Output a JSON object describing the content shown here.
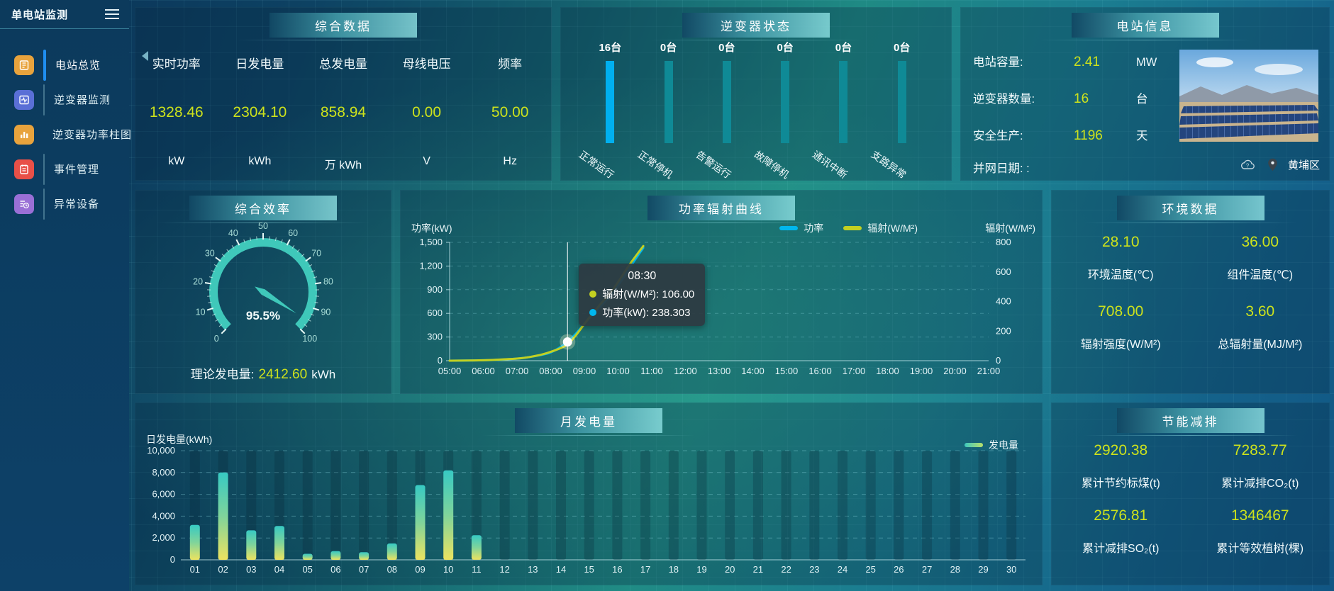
{
  "app": {
    "title": "单电站监测"
  },
  "colors": {
    "accent_yellow": "#cde21c",
    "active_bar_blue": "#00b0f0",
    "idle_bar_teal": "#0f8a96",
    "gauge_teal": "#3fc8ba",
    "nav_active_blue": "#1f8ef0"
  },
  "sidebar": {
    "items": [
      {
        "label": "电站总览",
        "icon": "station-overview",
        "color": "#e8a33d",
        "active": true
      },
      {
        "label": "逆变器监测",
        "icon": "inverter-monitor",
        "color": "#5a6fd6",
        "active": false
      },
      {
        "label": "逆变器功率柱图",
        "icon": "inverter-power-bars",
        "color": "#e8a33d",
        "active": false
      },
      {
        "label": "事件管理",
        "icon": "event-management",
        "color": "#e85048",
        "active": false
      },
      {
        "label": "异常设备",
        "icon": "abnormal-device",
        "color": "#9a6fd6",
        "active": false
      }
    ]
  },
  "panels": {
    "summary": {
      "title": "综合数据",
      "metrics": [
        {
          "label": "实时功率",
          "value": "1328.46",
          "unit": "kW"
        },
        {
          "label": "日发电量",
          "value": "2304.10",
          "unit": "kWh"
        },
        {
          "label": "总发电量",
          "value": "858.94",
          "unit": "万 kWh"
        },
        {
          "label": "母线电压",
          "value": "0.00",
          "unit": "V"
        },
        {
          "label": "频率",
          "value": "50.00",
          "unit": "Hz"
        }
      ]
    },
    "inverter_status": {
      "title": "逆变器状态",
      "bars": [
        {
          "count": "16台",
          "label": "正常运行",
          "highlight": true
        },
        {
          "count": "0台",
          "label": "正常停机",
          "highlight": false
        },
        {
          "count": "0台",
          "label": "告警运行",
          "highlight": false
        },
        {
          "count": "0台",
          "label": "故障停机",
          "highlight": false
        },
        {
          "count": "0台",
          "label": "通讯中断",
          "highlight": false
        },
        {
          "count": "0台",
          "label": "支路异常",
          "highlight": false
        }
      ]
    },
    "station_info": {
      "title": "电站信息",
      "rows": [
        {
          "label": "电站容量:",
          "value": "2.41",
          "unit": "MW"
        },
        {
          "label": "逆变器数量:",
          "value": "16",
          "unit": "台"
        },
        {
          "label": "安全生产:",
          "value": "1196",
          "unit": "天"
        },
        {
          "label": "并网日期: :",
          "value": "",
          "unit": ""
        }
      ],
      "location": "黄埔区"
    },
    "efficiency": {
      "title": "综合效率",
      "footer_label": "理论发电量:",
      "footer_value": "2412.60",
      "footer_unit": "kWh"
    },
    "environment": {
      "title": "环境数据",
      "metrics": [
        {
          "value": "28.10",
          "label": "环境温度(℃)"
        },
        {
          "value": "36.00",
          "label": "组件温度(℃)"
        },
        {
          "value": "708.00",
          "label": "辐射强度(W/M²)"
        },
        {
          "value": "3.60",
          "label": "总辐射量(MJ/M²)"
        }
      ]
    },
    "saving": {
      "title": "节能减排",
      "metrics": [
        {
          "value": "2920.38",
          "label": "累计节约标煤(t)"
        },
        {
          "value": "7283.77",
          "label": "累计减排CO₂(t)"
        },
        {
          "value": "2576.81",
          "label": "累计减排SO₂(t)"
        },
        {
          "value": "1346467",
          "label": "累计等效植树(棵)"
        }
      ]
    }
  },
  "chart_data": [
    {
      "id": "power_radiation",
      "type": "line",
      "title": "功率辐射曲线",
      "ylabel_left": "功率(kW)",
      "ylabel_right": "辐射(W/M²)",
      "ylim_left": [
        0,
        1500
      ],
      "yticks_left": [
        0,
        300,
        600,
        900,
        1200,
        1500
      ],
      "ylim_right": [
        0,
        800
      ],
      "yticks_right": [
        0,
        200,
        400,
        600,
        800
      ],
      "x_range_hours": [
        5,
        21
      ],
      "xticks": [
        "05:00",
        "06:00",
        "07:00",
        "08:00",
        "09:00",
        "10:00",
        "11:00",
        "12:00",
        "13:00",
        "14:00",
        "15:00",
        "16:00",
        "17:00",
        "18:00",
        "19:00",
        "20:00",
        "21:00"
      ],
      "grid": "dashed-horizontal",
      "legend_position": "top-right",
      "legend": [
        {
          "name": "功率",
          "color": "#00b7ee"
        },
        {
          "name": "辐射(W/M²)",
          "color": "#c3d021"
        }
      ],
      "series": [
        {
          "name": "功率",
          "axis": "left",
          "color": "#00b7ee",
          "points": [
            [
              5,
              0
            ],
            [
              5.5,
              2
            ],
            [
              6,
              5
            ],
            [
              6.5,
              12
            ],
            [
              7,
              25
            ],
            [
              7.25,
              38
            ],
            [
              7.5,
              55
            ],
            [
              7.75,
              75
            ],
            [
              8,
              100
            ],
            [
              8.25,
              160
            ],
            [
              8.5,
              238.3
            ],
            [
              8.75,
              340
            ],
            [
              9,
              470
            ],
            [
              9.25,
              590
            ],
            [
              9.5,
              700
            ],
            [
              9.75,
              810
            ],
            [
              10,
              950
            ],
            [
              10.25,
              1110
            ],
            [
              10.5,
              1280
            ],
            [
              10.75,
              1430
            ]
          ]
        },
        {
          "name": "辐射(W/M²)",
          "axis": "right",
          "color": "#c3d021",
          "points": [
            [
              5,
              0
            ],
            [
              5.5,
              1
            ],
            [
              6,
              3
            ],
            [
              6.5,
              7
            ],
            [
              7,
              14
            ],
            [
              7.25,
              20
            ],
            [
              7.5,
              30
            ],
            [
              7.75,
              42
            ],
            [
              8,
              60
            ],
            [
              8.25,
              80
            ],
            [
              8.5,
              106
            ],
            [
              8.75,
              170
            ],
            [
              9,
              250
            ],
            [
              9.25,
              320
            ],
            [
              9.5,
              390
            ],
            [
              9.75,
              450
            ],
            [
              10,
              530
            ],
            [
              10.25,
              620
            ],
            [
              10.5,
              700
            ],
            [
              10.75,
              775
            ]
          ]
        }
      ],
      "tooltip": {
        "x": 8.5,
        "time": "08:30",
        "marker_value": 238.303,
        "lines": [
          {
            "color": "#c3d021",
            "text": "辐射(W/M²): 106.00"
          },
          {
            "color": "#00b7ee",
            "text": "功率(kW): 238.303"
          }
        ]
      }
    },
    {
      "id": "monthly_energy",
      "type": "bar",
      "title": "月发电量",
      "ylabel": "日发电量(kWh)",
      "ylim": [
        0,
        10000
      ],
      "yticks": [
        0,
        2000,
        4000,
        6000,
        8000,
        10000
      ],
      "grid": "dashed-horizontal",
      "legend_position": "top-right",
      "legend": [
        {
          "name": "发电量",
          "color_gradient": [
            "#3cc8c0",
            "#b9e06a"
          ]
        }
      ],
      "bar_gradient": [
        "#37c9c3",
        "#7fd49b",
        "#ece360"
      ],
      "categories": [
        "01",
        "02",
        "03",
        "04",
        "05",
        "06",
        "07",
        "08",
        "09",
        "10",
        "11",
        "12",
        "13",
        "14",
        "15",
        "16",
        "17",
        "18",
        "19",
        "20",
        "21",
        "22",
        "23",
        "24",
        "25",
        "26",
        "27",
        "28",
        "29",
        "30"
      ],
      "values": [
        3200,
        8000,
        2700,
        3100,
        550,
        800,
        700,
        1500,
        6850,
        8200,
        2250,
        0,
        0,
        0,
        0,
        0,
        0,
        0,
        0,
        0,
        0,
        0,
        0,
        0,
        0,
        0,
        0,
        0,
        0,
        0
      ]
    },
    {
      "id": "efficiency_gauge",
      "type": "gauge",
      "min": 0,
      "max": 100,
      "value": 95.5,
      "label": "95.5%",
      "ticks": [
        0,
        10,
        20,
        30,
        40,
        50,
        60,
        70,
        80,
        90,
        100
      ]
    }
  ]
}
